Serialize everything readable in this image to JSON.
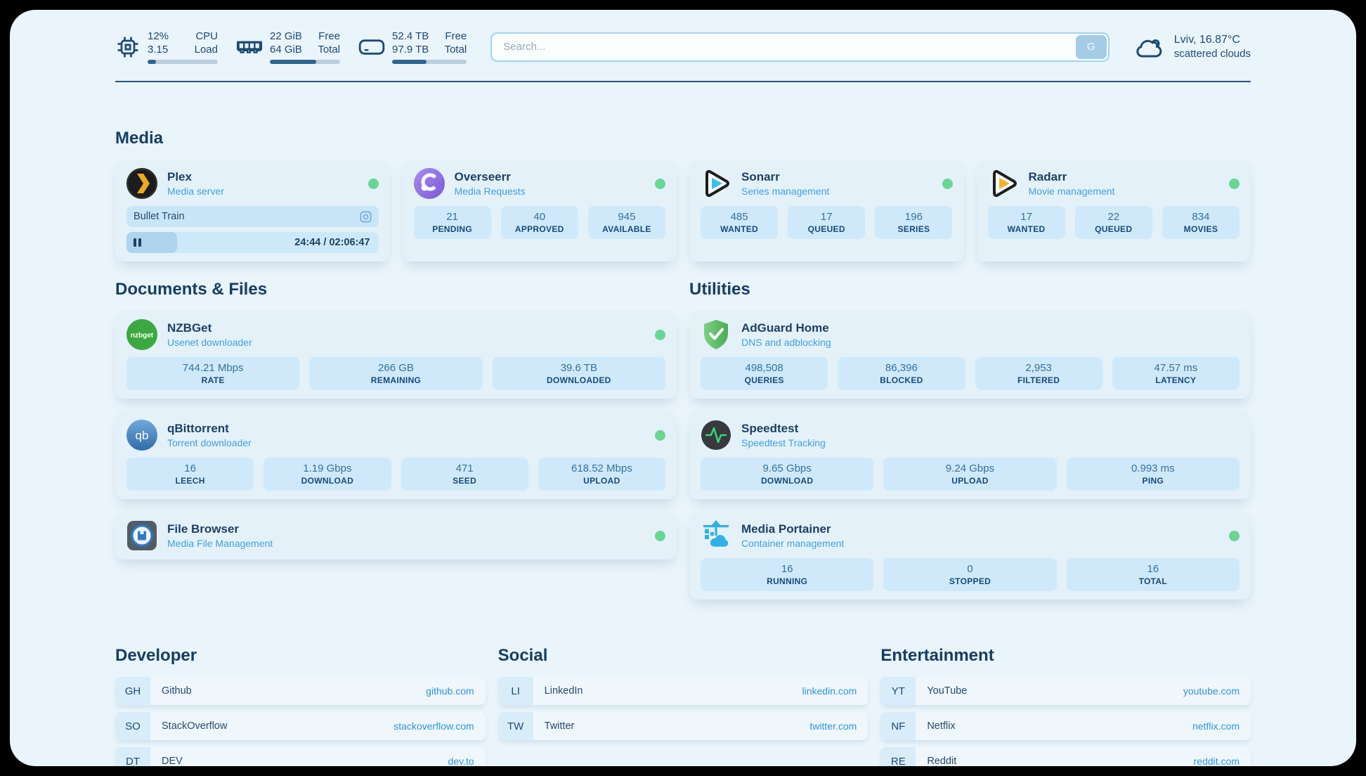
{
  "colors": {
    "status_online": "#68d695",
    "accent": "#2e95d9",
    "navy": "#1c4a74"
  },
  "topbar": {
    "cpu": {
      "icon": "cpu-icon",
      "value1": "12%",
      "value2": "3.15",
      "label1": "CPU",
      "label2": "Load",
      "progress_pct": 12
    },
    "memory": {
      "icon": "ram-icon",
      "value1": "22 GiB",
      "value2": "64 GiB",
      "label1": "Free",
      "label2": "Total",
      "progress_pct": 66
    },
    "disk": {
      "icon": "disk-icon",
      "value1": "52.4 TB",
      "value2": "97.9 TB",
      "label1": "Free",
      "label2": "Total",
      "progress_pct": 46
    },
    "search": {
      "placeholder": "Search...",
      "button_label": "G"
    },
    "weather": {
      "icon": "cloud-icon",
      "summary": "Lviv, 16.87°C",
      "condition": "scattered clouds"
    }
  },
  "media": {
    "title": "Media",
    "plex": {
      "icon": "plex-icon",
      "name": "Plex",
      "description": "Media server",
      "status": "online",
      "now_playing": {
        "title": "Bullet Train",
        "time": "24:44 / 02:06:47",
        "progress_pct": 20
      }
    },
    "overseerr": {
      "icon": "overseerr-icon",
      "name": "Overseerr",
      "description": "Media Requests",
      "status": "online",
      "stats": [
        {
          "value": "21",
          "label": "PENDING"
        },
        {
          "value": "40",
          "label": "APPROVED"
        },
        {
          "value": "945",
          "label": "AVAILABLE"
        }
      ]
    },
    "sonarr": {
      "icon": "sonarr-icon",
      "name": "Sonarr",
      "description": "Series management",
      "status": "online",
      "stats": [
        {
          "value": "485",
          "label": "WANTED"
        },
        {
          "value": "17",
          "label": "QUEUED"
        },
        {
          "value": "196",
          "label": "SERIES"
        }
      ]
    },
    "radarr": {
      "icon": "radarr-icon",
      "name": "Radarr",
      "description": "Movie management",
      "status": "online",
      "stats": [
        {
          "value": "17",
          "label": "WANTED"
        },
        {
          "value": "22",
          "label": "QUEUED"
        },
        {
          "value": "834",
          "label": "MOVIES"
        }
      ]
    }
  },
  "documents": {
    "title": "Documents & Files",
    "nzbget": {
      "icon": "nzbget-icon",
      "name": "NZBGet",
      "description": "Usenet downloader",
      "status": "online",
      "stats": [
        {
          "value": "744.21 Mbps",
          "label": "RATE"
        },
        {
          "value": "266 GB",
          "label": "REMAINING"
        },
        {
          "value": "39.6 TB",
          "label": "DOWNLOADED"
        }
      ]
    },
    "qbittorrent": {
      "icon": "qbittorrent-icon",
      "name": "qBittorrent",
      "description": "Torrent downloader",
      "status": "online",
      "stats": [
        {
          "value": "16",
          "label": "LEECH"
        },
        {
          "value": "1.19 Gbps",
          "label": "DOWNLOAD"
        },
        {
          "value": "471",
          "label": "SEED"
        },
        {
          "value": "618.52 Mbps",
          "label": "UPLOAD"
        }
      ]
    },
    "filebrowser": {
      "icon": "filebrowser-icon",
      "name": "File Browser",
      "description": "Media File Management",
      "status": "online"
    }
  },
  "utilities": {
    "title": "Utilities",
    "adguard": {
      "icon": "adguard-icon",
      "name": "AdGuard Home",
      "description": "DNS and adblocking",
      "stats": [
        {
          "value": "498,508",
          "label": "QUERIES"
        },
        {
          "value": "86,396",
          "label": "BLOCKED"
        },
        {
          "value": "2,953",
          "label": "FILTERED"
        },
        {
          "value": "47.57 ms",
          "label": "LATENCY"
        }
      ]
    },
    "speedtest": {
      "icon": "speedtest-icon",
      "name": "Speedtest",
      "description": "Speedtest Tracking",
      "stats": [
        {
          "value": "9.65 Gbps",
          "label": "DOWNLOAD"
        },
        {
          "value": "9.24 Gbps",
          "label": "UPLOAD"
        },
        {
          "value": "0.993 ms",
          "label": "PING"
        }
      ]
    },
    "portainer": {
      "icon": "portainer-icon",
      "name": "Media Portainer",
      "description": "Container management",
      "status": "online",
      "stats": [
        {
          "value": "16",
          "label": "RUNNING"
        },
        {
          "value": "0",
          "label": "STOPPED"
        },
        {
          "value": "16",
          "label": "TOTAL"
        }
      ]
    }
  },
  "bookmarks": {
    "developer": {
      "title": "Developer",
      "items": [
        {
          "abbr": "GH",
          "name": "Github",
          "url": "github.com"
        },
        {
          "abbr": "SO",
          "name": "StackOverflow",
          "url": "stackoverflow.com"
        },
        {
          "abbr": "DT",
          "name": "DEV",
          "url": "dev.to"
        }
      ]
    },
    "social": {
      "title": "Social",
      "items": [
        {
          "abbr": "LI",
          "name": "LinkedIn",
          "url": "linkedin.com"
        },
        {
          "abbr": "TW",
          "name": "Twitter",
          "url": "twitter.com"
        }
      ]
    },
    "entertainment": {
      "title": "Entertainment",
      "items": [
        {
          "abbr": "YT",
          "name": "YouTube",
          "url": "youtube.com"
        },
        {
          "abbr": "NF",
          "name": "Netflix",
          "url": "netflix.com"
        },
        {
          "abbr": "RE",
          "name": "Reddit",
          "url": "reddit.com"
        }
      ]
    }
  }
}
